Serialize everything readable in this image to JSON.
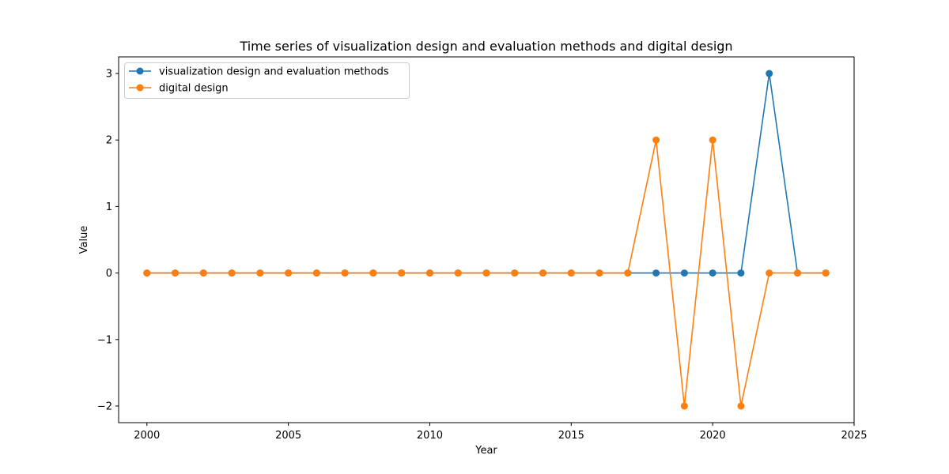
{
  "chart_data": {
    "type": "line",
    "title": "Time series of visualization design and evaluation methods and digital design",
    "xlabel": "Year",
    "ylabel": "Value",
    "x": [
      2000,
      2001,
      2002,
      2003,
      2004,
      2005,
      2006,
      2007,
      2008,
      2009,
      2010,
      2011,
      2012,
      2013,
      2014,
      2015,
      2016,
      2017,
      2018,
      2019,
      2020,
      2021,
      2022,
      2023,
      2024
    ],
    "xlim": [
      1999,
      2025
    ],
    "ylim": [
      -2.25,
      3.25
    ],
    "xticks": [
      2000,
      2005,
      2010,
      2015,
      2020,
      2025
    ],
    "yticks": [
      -2,
      -1,
      0,
      1,
      2,
      3
    ],
    "xtick_labels": [
      "2000",
      "2005",
      "2010",
      "2015",
      "2020",
      "2025"
    ],
    "ytick_labels": [
      "−2",
      "−1",
      "0",
      "1",
      "2",
      "3"
    ],
    "grid": false,
    "legend_position": "top-left",
    "marker": "circle",
    "series": [
      {
        "name": "visualization design and evaluation methods",
        "color": "#1f77b4",
        "values": [
          0,
          0,
          0,
          0,
          0,
          0,
          0,
          0,
          0,
          0,
          0,
          0,
          0,
          0,
          0,
          0,
          0,
          0,
          0,
          0,
          0,
          0,
          3,
          0,
          0
        ]
      },
      {
        "name": "digital design",
        "color": "#ff7f0e",
        "values": [
          0,
          0,
          0,
          0,
          0,
          0,
          0,
          0,
          0,
          0,
          0,
          0,
          0,
          0,
          0,
          0,
          0,
          0,
          2,
          -2,
          2,
          -2,
          0,
          0,
          0
        ]
      }
    ]
  }
}
